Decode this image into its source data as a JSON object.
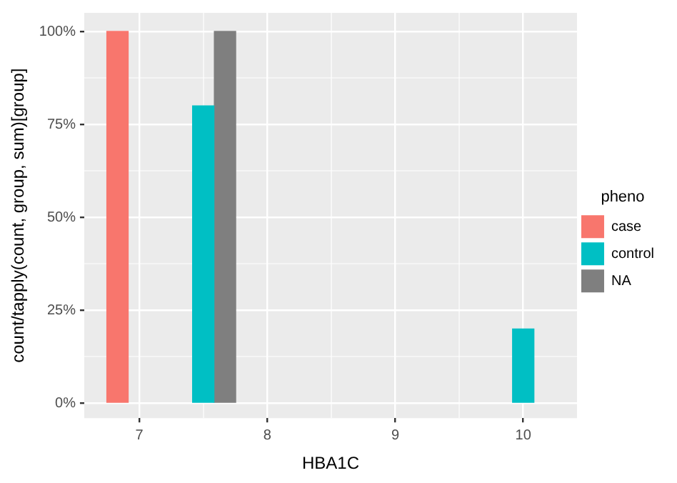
{
  "chart_data": {
    "type": "bar",
    "xlabel": "HBA1C",
    "ylabel": "count/tapply(count, group, sum)[group]",
    "legend_title": "pheno",
    "legend": "right",
    "grid": true,
    "xlim": [
      6.57,
      10.42
    ],
    "xticks": [
      7,
      {
        "value": 7.5,
        "label": null
      },
      8,
      {
        "value": 8.5,
        "label": null
      },
      9,
      {
        "value": 9.5,
        "label": null
      },
      10
    ],
    "ylim": [
      -4,
      105
    ],
    "yticks": [
      {
        "value": 0,
        "label": "0%"
      },
      {
        "value": 12.5,
        "label": null
      },
      {
        "value": 25,
        "label": "25%"
      },
      {
        "value": 37.5,
        "label": null
      },
      {
        "value": 50,
        "label": "50%"
      },
      {
        "value": 62.5,
        "label": null
      },
      {
        "value": 75,
        "label": "75%"
      },
      {
        "value": 87.5,
        "label": null
      },
      {
        "value": 100,
        "label": "100%"
      }
    ],
    "series": [
      {
        "name": "case",
        "color": "#f8766d",
        "x": [
          6.83
        ],
        "values": [
          100
        ]
      },
      {
        "name": "control",
        "color": "#00bfc4",
        "x": [
          7.5,
          10
        ],
        "values": [
          80,
          20
        ]
      },
      {
        "name": "NA",
        "color": "#7f7f7f",
        "x": [
          7.67
        ],
        "values": [
          100
        ]
      }
    ]
  }
}
